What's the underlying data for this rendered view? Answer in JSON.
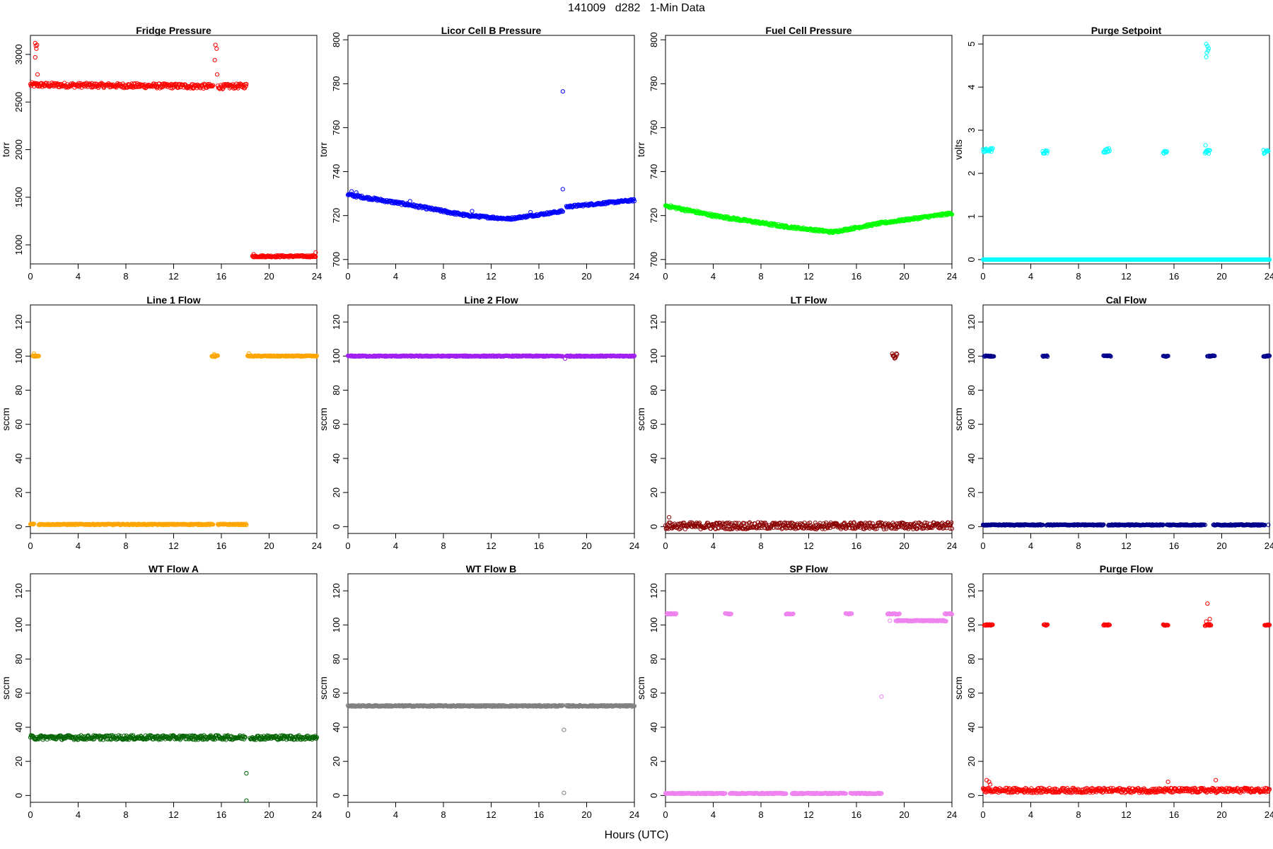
{
  "page": {
    "title": "141009   d282   1-Min Data",
    "xlabel": "Hours (UTC)"
  },
  "chart_data": [
    {
      "type": "scatter",
      "title": "Fridge Pressure",
      "xlabel": "",
      "ylabel": "torr",
      "color": "#ff0000",
      "xlim": [
        0,
        24
      ],
      "ylim": [
        800,
        3200
      ],
      "xticks": [
        0,
        4,
        8,
        12,
        16,
        20,
        24
      ],
      "yticks": [
        1000,
        1500,
        2000,
        2500,
        3000
      ],
      "segments": [
        {
          "x": [
            0,
            15.3
          ],
          "y": [
            2680,
            2665
          ],
          "noise": 25
        },
        {
          "x": [
            15.7,
            18.1
          ],
          "y": [
            2660,
            2670
          ],
          "noise": 25
        },
        {
          "x": [
            18.6,
            23.9
          ],
          "y": [
            880,
            880
          ],
          "noise": 10
        }
      ],
      "points": [
        {
          "x": 0.4,
          "y": 3120
        },
        {
          "x": 0.45,
          "y": 3090
        },
        {
          "x": 0.5,
          "y": 3060
        },
        {
          "x": 0.55,
          "y": 3100
        },
        {
          "x": 0.4,
          "y": 2970
        },
        {
          "x": 0.6,
          "y": 2790
        },
        {
          "x": 15.5,
          "y": 3100
        },
        {
          "x": 15.6,
          "y": 3060
        },
        {
          "x": 15.45,
          "y": 2940
        },
        {
          "x": 15.65,
          "y": 2790
        },
        {
          "x": 23.9,
          "y": 920
        },
        {
          "x": 18.7,
          "y": 900
        }
      ]
    },
    {
      "type": "scatter",
      "title": "Licor Cell B Pressure",
      "xlabel": "",
      "ylabel": "torr",
      "color": "#0000ff",
      "xlim": [
        0,
        24
      ],
      "ylim": [
        698,
        802
      ],
      "xticks": [
        0,
        4,
        8,
        12,
        16,
        20,
        24
      ],
      "yticks": [
        700,
        720,
        740,
        760,
        780,
        800
      ],
      "segments": [
        {
          "x": [
            0,
            5
          ],
          "y": [
            729.5,
            725
          ],
          "noise": 0.6
        },
        {
          "x": [
            5,
            10
          ],
          "y": [
            725,
            720
          ],
          "noise": 0.6
        },
        {
          "x": [
            10,
            13.5
          ],
          "y": [
            720,
            718.5
          ],
          "noise": 0.5
        },
        {
          "x": [
            13.5,
            18
          ],
          "y": [
            718.5,
            722
          ],
          "noise": 0.5
        },
        {
          "x": [
            18.3,
            24
          ],
          "y": [
            724,
            727
          ],
          "noise": 0.5
        }
      ],
      "points": [
        {
          "x": 18,
          "y": 776.5
        },
        {
          "x": 18,
          "y": 732
        },
        {
          "x": 0.3,
          "y": 731
        },
        {
          "x": 0.7,
          "y": 730.5
        },
        {
          "x": 5.2,
          "y": 726.5
        },
        {
          "x": 10.4,
          "y": 722
        },
        {
          "x": 15.3,
          "y": 721.5
        }
      ]
    },
    {
      "type": "scatter",
      "title": "Fuel Cell Pressure",
      "xlabel": "",
      "ylabel": "torr",
      "color": "#00ff00",
      "xlim": [
        0,
        24
      ],
      "ylim": [
        698,
        802
      ],
      "xticks": [
        0,
        4,
        8,
        12,
        16,
        20,
        24
      ],
      "yticks": [
        700,
        720,
        740,
        760,
        780,
        800
      ],
      "segments": [
        {
          "x": [
            0,
            4
          ],
          "y": [
            724.5,
            720
          ],
          "noise": 0.6
        },
        {
          "x": [
            4,
            10
          ],
          "y": [
            720,
            715
          ],
          "noise": 0.6
        },
        {
          "x": [
            10,
            14
          ],
          "y": [
            715,
            712.5
          ],
          "noise": 0.5
        },
        {
          "x": [
            14,
            18
          ],
          "y": [
            712.5,
            716.5
          ],
          "noise": 0.5
        },
        {
          "x": [
            18,
            24
          ],
          "y": [
            716.5,
            721
          ],
          "noise": 0.5
        }
      ],
      "points": []
    },
    {
      "type": "scatter",
      "title": "Purge Setpoint",
      "xlabel": "",
      "ylabel": "volts",
      "color": "#00ffff",
      "xlim": [
        0,
        24
      ],
      "ylim": [
        -0.1,
        5.2
      ],
      "xticks": [
        0,
        4,
        8,
        12,
        16,
        20,
        24
      ],
      "yticks": [
        0,
        1,
        2,
        3,
        4,
        5
      ],
      "segments": [
        {
          "x": [
            0,
            24
          ],
          "y": [
            0,
            0
          ],
          "noise": 0
        },
        {
          "x": [
            0,
            0.8
          ],
          "y": [
            2.52,
            2.55
          ],
          "noise": 0.04
        },
        {
          "x": [
            5,
            5.4
          ],
          "y": [
            2.5,
            2.5
          ],
          "noise": 0.04
        },
        {
          "x": [
            10.1,
            10.6
          ],
          "y": [
            2.5,
            2.55
          ],
          "noise": 0.04
        },
        {
          "x": [
            15.1,
            15.4
          ],
          "y": [
            2.5,
            2.5
          ],
          "noise": 0.04
        },
        {
          "x": [
            18.6,
            19
          ],
          "y": [
            2.5,
            2.5
          ],
          "noise": 0.05
        },
        {
          "x": [
            23.5,
            23.9
          ],
          "y": [
            2.5,
            2.5
          ],
          "noise": 0.04
        }
      ],
      "points": [
        {
          "x": 18.7,
          "y": 5.0
        },
        {
          "x": 18.8,
          "y": 4.95
        },
        {
          "x": 18.9,
          "y": 4.9
        },
        {
          "x": 18.75,
          "y": 4.8
        },
        {
          "x": 18.7,
          "y": 4.7
        },
        {
          "x": 18.85,
          "y": 4.85
        },
        {
          "x": 18.65,
          "y": 2.65
        }
      ]
    },
    {
      "type": "scatter",
      "title": "Line 1 Flow",
      "xlabel": "",
      "ylabel": "sccm",
      "color": "#ffa500",
      "xlim": [
        0,
        24
      ],
      "ylim": [
        -4,
        130
      ],
      "xticks": [
        0,
        4,
        8,
        12,
        16,
        20,
        24
      ],
      "yticks": [
        0,
        20,
        40,
        60,
        80,
        100,
        120
      ],
      "segments": [
        {
          "x": [
            0,
            0.3
          ],
          "y": [
            1.5,
            1.5
          ],
          "noise": 0.3
        },
        {
          "x": [
            0.2,
            0.7
          ],
          "y": [
            100,
            100
          ],
          "noise": 0.4
        },
        {
          "x": [
            0.7,
            15.3
          ],
          "y": [
            1.3,
            1.3
          ],
          "noise": 0.3
        },
        {
          "x": [
            15.2,
            15.7
          ],
          "y": [
            100,
            100
          ],
          "noise": 0.4
        },
        {
          "x": [
            15.7,
            18.1
          ],
          "y": [
            1.3,
            1.3
          ],
          "noise": 0.3
        },
        {
          "x": [
            18.2,
            24
          ],
          "y": [
            100,
            100
          ],
          "noise": 0.3
        }
      ],
      "points": [
        {
          "x": 0.3,
          "y": 101.5
        },
        {
          "x": 15.4,
          "y": 101
        },
        {
          "x": 18.3,
          "y": 101.5
        }
      ]
    },
    {
      "type": "scatter",
      "title": "Line 2 Flow",
      "xlabel": "",
      "ylabel": "sccm",
      "color": "#a020f0",
      "xlim": [
        0,
        24
      ],
      "ylim": [
        -4,
        130
      ],
      "xticks": [
        0,
        4,
        8,
        12,
        16,
        20,
        24
      ],
      "yticks": [
        0,
        20,
        40,
        60,
        80,
        100,
        120
      ],
      "segments": [
        {
          "x": [
            0,
            18
          ],
          "y": [
            100,
            100
          ],
          "noise": 0.3
        },
        {
          "x": [
            18.3,
            24
          ],
          "y": [
            100,
            100
          ],
          "noise": 0.3
        }
      ],
      "points": [
        {
          "x": 18.2,
          "y": 98.5
        }
      ]
    },
    {
      "type": "scatter",
      "title": "LT Flow",
      "xlabel": "",
      "ylabel": "sccm",
      "color": "#8b0000",
      "xlim": [
        0,
        24
      ],
      "ylim": [
        -4,
        130
      ],
      "xticks": [
        0,
        4,
        8,
        12,
        16,
        20,
        24
      ],
      "yticks": [
        0,
        20,
        40,
        60,
        80,
        100,
        120
      ],
      "segments": [
        {
          "x": [
            0,
            24
          ],
          "y": [
            0.5,
            0.5
          ],
          "noise": 2.0
        },
        {
          "x": [
            19,
            19.4
          ],
          "y": [
            100,
            100
          ],
          "noise": 1.5
        }
      ],
      "points": [
        {
          "x": 0.3,
          "y": 5.5
        }
      ]
    },
    {
      "type": "scatter",
      "title": "Cal Flow",
      "xlabel": "",
      "ylabel": "sccm",
      "color": "#00008b",
      "xlim": [
        0,
        24
      ],
      "ylim": [
        -4,
        130
      ],
      "xticks": [
        0,
        4,
        8,
        12,
        16,
        20,
        24
      ],
      "yticks": [
        0,
        20,
        40,
        60,
        80,
        100,
        120
      ],
      "segments": [
        {
          "x": [
            0.1,
            0.9
          ],
          "y": [
            100,
            100
          ],
          "noise": 0.3
        },
        {
          "x": [
            5,
            5.4
          ],
          "y": [
            100,
            100
          ],
          "noise": 0.3
        },
        {
          "x": [
            10.1,
            10.7
          ],
          "y": [
            100,
            100
          ],
          "noise": 0.3
        },
        {
          "x": [
            15.1,
            15.5
          ],
          "y": [
            100,
            100
          ],
          "noise": 0.3
        },
        {
          "x": [
            18.8,
            19.4
          ],
          "y": [
            100,
            100
          ],
          "noise": 0.3
        },
        {
          "x": [
            23.5,
            24
          ],
          "y": [
            100,
            100
          ],
          "noise": 0.3
        },
        {
          "x": [
            0,
            5
          ],
          "y": [
            1,
            1
          ],
          "noise": 0.3
        },
        {
          "x": [
            5.3,
            10.1
          ],
          "y": [
            1,
            1
          ],
          "noise": 0.3
        },
        {
          "x": [
            10.5,
            15.1
          ],
          "y": [
            1,
            1
          ],
          "noise": 0.3
        },
        {
          "x": [
            15.4,
            18.5
          ],
          "y": [
            1,
            1
          ],
          "noise": 0.3
        },
        {
          "x": [
            19.3,
            23.6
          ],
          "y": [
            1,
            1
          ],
          "noise": 0.3
        }
      ],
      "points": [
        {
          "x": 18.6,
          "y": 1
        },
        {
          "x": 23.9,
          "y": 1
        }
      ]
    },
    {
      "type": "scatter",
      "title": "WT Flow A",
      "xlabel": "",
      "ylabel": "sccm",
      "color": "#006400",
      "xlim": [
        0,
        24
      ],
      "ylim": [
        -4,
        130
      ],
      "xticks": [
        0,
        4,
        8,
        12,
        16,
        20,
        24
      ],
      "yticks": [
        0,
        20,
        40,
        60,
        80,
        100,
        120
      ],
      "segments": [
        {
          "x": [
            0,
            18
          ],
          "y": [
            34,
            34
          ],
          "noise": 1.3
        },
        {
          "x": [
            18.4,
            24
          ],
          "y": [
            34,
            34
          ],
          "noise": 1.3
        }
      ],
      "points": [
        {
          "x": 18.1,
          "y": 13
        },
        {
          "x": 18.1,
          "y": -3
        }
      ]
    },
    {
      "type": "scatter",
      "title": "WT Flow B",
      "xlabel": "",
      "ylabel": "sccm",
      "color": "#808080",
      "xlim": [
        0,
        24
      ],
      "ylim": [
        -4,
        130
      ],
      "xticks": [
        0,
        4,
        8,
        12,
        16,
        20,
        24
      ],
      "yticks": [
        0,
        20,
        40,
        60,
        80,
        100,
        120
      ],
      "segments": [
        {
          "x": [
            0,
            18
          ],
          "y": [
            52.5,
            52.5
          ],
          "noise": 0.4
        },
        {
          "x": [
            18.3,
            24
          ],
          "y": [
            52.5,
            52.5
          ],
          "noise": 0.4
        }
      ],
      "points": [
        {
          "x": 18.1,
          "y": 38.5
        },
        {
          "x": 18.1,
          "y": 1.5
        }
      ]
    },
    {
      "type": "scatter",
      "title": "SP Flow",
      "xlabel": "",
      "ylabel": "sccm",
      "color": "#ee82ee",
      "xlim": [
        0,
        24
      ],
      "ylim": [
        -4,
        130
      ],
      "xticks": [
        0,
        4,
        8,
        12,
        16,
        20,
        24
      ],
      "yticks": [
        0,
        20,
        40,
        60,
        80,
        100,
        120
      ],
      "segments": [
        {
          "x": [
            0.1,
            0.9
          ],
          "y": [
            106.5,
            106.5
          ],
          "noise": 0.3
        },
        {
          "x": [
            5,
            5.5
          ],
          "y": [
            106.5,
            106.5
          ],
          "noise": 0.3
        },
        {
          "x": [
            10.1,
            10.7
          ],
          "y": [
            106.5,
            106.5
          ],
          "noise": 0.3
        },
        {
          "x": [
            15.1,
            15.6
          ],
          "y": [
            106.5,
            106.5
          ],
          "noise": 0.3
        },
        {
          "x": [
            18.6,
            19.6
          ],
          "y": [
            106.5,
            106.5
          ],
          "noise": 0.3
        },
        {
          "x": [
            23.4,
            24
          ],
          "y": [
            106.5,
            106.5
          ],
          "noise": 0.3
        },
        {
          "x": [
            0,
            5
          ],
          "y": [
            1.2,
            1.2
          ],
          "noise": 0.3
        },
        {
          "x": [
            5.4,
            10.1
          ],
          "y": [
            1.2,
            1.2
          ],
          "noise": 0.3
        },
        {
          "x": [
            10.6,
            15.1
          ],
          "y": [
            1.2,
            1.2
          ],
          "noise": 0.3
        },
        {
          "x": [
            15.5,
            18.1
          ],
          "y": [
            1.2,
            1.2
          ],
          "noise": 0.3
        },
        {
          "x": [
            19.3,
            23.5
          ],
          "y": [
            102.5,
            102.5
          ],
          "noise": 0.3
        }
      ],
      "points": [
        {
          "x": 18.1,
          "y": 58
        },
        {
          "x": 18.8,
          "y": 102.5
        }
      ]
    },
    {
      "type": "scatter",
      "title": "Purge Flow",
      "xlabel": "",
      "ylabel": "sccm",
      "color": "#ff0000",
      "xlim": [
        0,
        24
      ],
      "ylim": [
        -4,
        130
      ],
      "xticks": [
        0,
        4,
        8,
        12,
        16,
        20,
        24
      ],
      "yticks": [
        0,
        20,
        40,
        60,
        80,
        100,
        120
      ],
      "segments": [
        {
          "x": [
            0,
            24
          ],
          "y": [
            3,
            3
          ],
          "noise": 1.4
        },
        {
          "x": [
            0.1,
            0.8
          ],
          "y": [
            100,
            100
          ],
          "noise": 0.3
        },
        {
          "x": [
            5.1,
            5.4
          ],
          "y": [
            100,
            100
          ],
          "noise": 0.3
        },
        {
          "x": [
            10.1,
            10.6
          ],
          "y": [
            100,
            100
          ],
          "noise": 0.3
        },
        {
          "x": [
            15.1,
            15.5
          ],
          "y": [
            100,
            100
          ],
          "noise": 0.3
        },
        {
          "x": [
            18.6,
            19.1
          ],
          "y": [
            100,
            100
          ],
          "noise": 0.5
        },
        {
          "x": [
            23.6,
            24
          ],
          "y": [
            100,
            100
          ],
          "noise": 0.3
        }
      ],
      "points": [
        {
          "x": 18.8,
          "y": 112.5
        },
        {
          "x": 19,
          "y": 103.5
        },
        {
          "x": 18.7,
          "y": 102
        },
        {
          "x": 0.3,
          "y": 9
        },
        {
          "x": 0.5,
          "y": 8
        },
        {
          "x": 15.5,
          "y": 8
        },
        {
          "x": 19.5,
          "y": 9
        },
        {
          "x": 0.6,
          "y": 6.5
        }
      ]
    }
  ]
}
